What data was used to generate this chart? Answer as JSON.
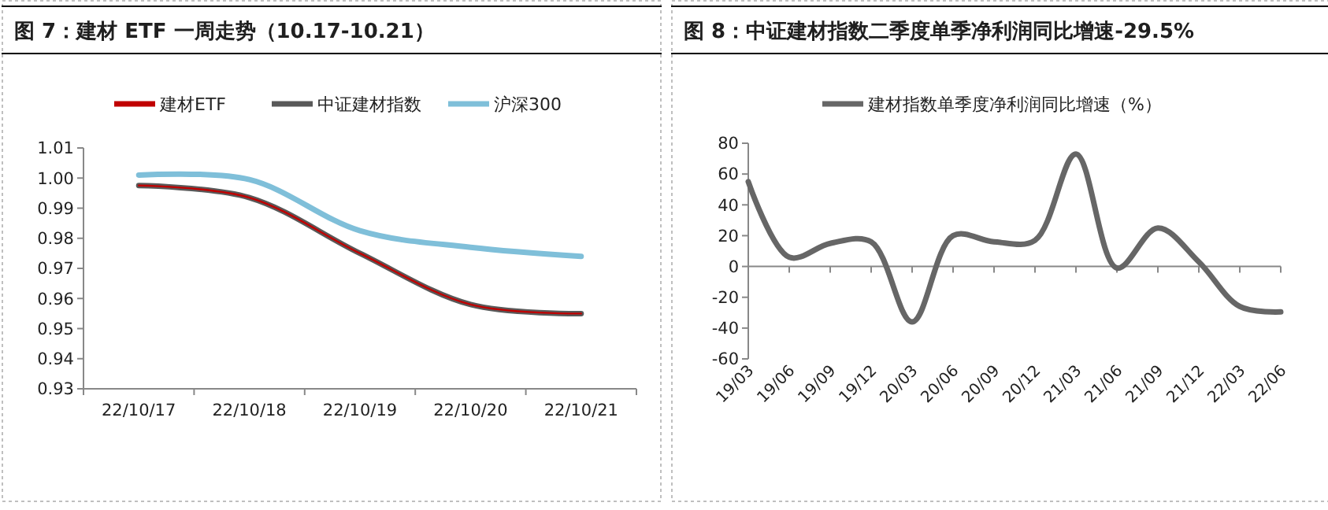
{
  "chart_data": [
    {
      "type": "line",
      "title": "图 7：建材 ETF 一周走势（10.17-10.21）",
      "categories": [
        "22/10/17",
        "22/10/18",
        "22/10/19",
        "22/10/20",
        "22/10/21"
      ],
      "series": [
        {
          "name": "建材ETF",
          "color": "#c00000",
          "values": [
            0.9975,
            0.9935,
            0.975,
            0.958,
            0.955
          ]
        },
        {
          "name": "中证建材指数",
          "color": "#595959",
          "values": [
            0.9975,
            0.9935,
            0.975,
            0.958,
            0.955
          ]
        },
        {
          "name": "沪深300",
          "color": "#7fbfd9",
          "values": [
            1.001,
            0.9995,
            0.9825,
            0.977,
            0.974
          ]
        }
      ],
      "ylim": [
        0.93,
        1.01
      ],
      "yticks": [
        0.93,
        0.94,
        0.95,
        0.96,
        0.97,
        0.98,
        0.99,
        {
          "value": 1,
          "label": "1.00"
        },
        1.01
      ],
      "legend": "top"
    },
    {
      "type": "line",
      "title": "图 8：中证建材指数二季度单季净利润同比增速-29.5%",
      "categories": [
        "19/03",
        "19/06",
        "19/09",
        "19/12",
        "20/03",
        "20/06",
        "20/09",
        "20/12",
        "21/03",
        "21/06",
        "21/09",
        "21/12",
        "22/03",
        "22/06"
      ],
      "series": [
        {
          "name": "建材指数单季度净利润同比增速（%）",
          "color": "#666666",
          "values": [
            55,
            6,
            15,
            16,
            -36,
            20,
            16,
            17,
            73,
            -1,
            25,
            3,
            -26,
            -29.5
          ]
        }
      ],
      "ylim": [
        -60,
        80
      ],
      "yticks": [
        -60,
        -40,
        -20,
        0,
        20,
        40,
        60,
        80
      ],
      "legend": "top"
    }
  ]
}
